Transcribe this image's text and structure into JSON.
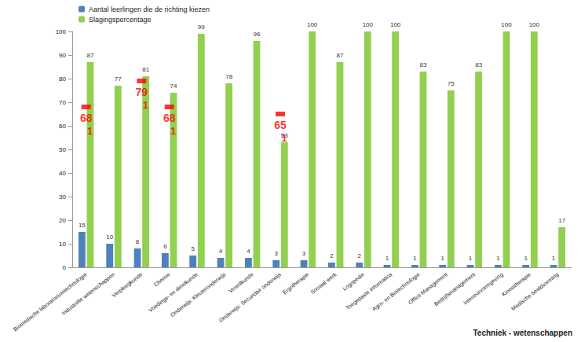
{
  "chart_data": {
    "type": "bar",
    "categories": [
      "Biomedische laboratoriumtechnologie",
      "Industriële wetenschappen",
      "Verpleegkunde",
      "Chemie",
      "Voedings- en dieetkunde",
      "Onderwijs: Kleuteronderwijs",
      "Vroedkunde",
      "Onderwijs: Secundair onderwijs",
      "Ergotherapie",
      "Sociaal werk",
      "Logopedie",
      "Toegepaste informatica",
      "Agro- en Biotechnologie",
      "Office Management",
      "Bedrijfsmanagement",
      "Interieurvormgeving",
      "Kinesitherapie",
      "Medische beeldvorming"
    ],
    "series": [
      {
        "name": "Aantal leerlingen die de richting kiezen",
        "color": "#4f81bd",
        "values": [
          15,
          10,
          8,
          6,
          5,
          4,
          4,
          3,
          3,
          2,
          2,
          1,
          1,
          1,
          1,
          1,
          1,
          1
        ]
      },
      {
        "name": "Slagingspercentage",
        "color": "#92d050",
        "values": [
          87,
          77,
          81,
          74,
          99,
          78,
          96,
          53,
          100,
          87,
          100,
          100,
          83,
          75,
          83,
          100,
          100,
          17
        ]
      }
    ],
    "ylim": [
      0,
      100
    ],
    "yticks": [
      0,
      10,
      20,
      30,
      40,
      50,
      60,
      70,
      80,
      90,
      100
    ],
    "grid": false,
    "legend": "top-left",
    "data_labels": true,
    "xlabel": "Techniek - wetenschappen",
    "annotations": [
      {
        "category": "Biomedische laboratoriumtechnologie",
        "value": 68,
        "note": 1,
        "color": "#ff0000"
      },
      {
        "category": "Verpleegkunde",
        "value": 79,
        "note": 1,
        "color": "#ff0000"
      },
      {
        "category": "Chemie",
        "value": 68,
        "note": 1,
        "color": "#ff0000"
      },
      {
        "category": "Onderwijs: Secundair onderwijs",
        "value": 65,
        "note": 1,
        "color": "#ff0000"
      }
    ]
  }
}
